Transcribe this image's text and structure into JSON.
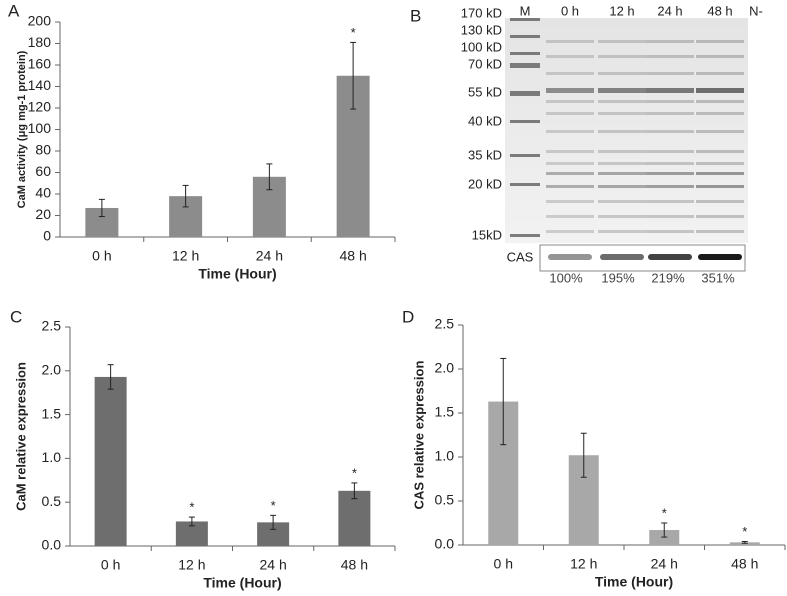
{
  "chart_data": [
    {
      "type": "bar",
      "panel_label": "A",
      "x_label": "Time (Hour)",
      "y_label": "CaM activity (μg mg-1 protein)",
      "categories": [
        "0 h",
        "12 h",
        "24 h",
        "48 h"
      ],
      "values": [
        27,
        38,
        56,
        150
      ],
      "errors": [
        8,
        10,
        12,
        31
      ],
      "color": "#8c8c8c",
      "ylim": [
        0,
        200
      ],
      "yticks": [
        0,
        20,
        40,
        60,
        80,
        100,
        120,
        140,
        160,
        180,
        200
      ],
      "annotations": [
        {
          "text": "*",
          "category": "48 h"
        }
      ]
    },
    {
      "type": "bar",
      "panel_label": "C",
      "x_label": "Time (Hour)",
      "y_label": "CaM relative expression",
      "categories": [
        "0 h",
        "12 h",
        "24 h",
        "48 h"
      ],
      "values": [
        1.93,
        0.28,
        0.27,
        0.63
      ],
      "errors": [
        0.14,
        0.05,
        0.08,
        0.09
      ],
      "color": "#6e6e6e",
      "ylim": [
        0,
        2.5
      ],
      "yticks": [
        {
          "value": 0,
          "label": "0.0"
        },
        0.5,
        {
          "value": 1,
          "label": "1.0"
        },
        1.5,
        {
          "value": 2,
          "label": "2.0"
        },
        2.5
      ],
      "annotations": [
        {
          "text": "*",
          "category": "12 h"
        },
        {
          "text": "*",
          "category": "24 h"
        },
        {
          "text": "*",
          "category": "48 h"
        }
      ]
    },
    {
      "type": "bar",
      "panel_label": "D",
      "x_label": "Time (Hour)",
      "y_label": "CAS relative expression",
      "categories": [
        "0 h",
        "12 h",
        "24 h",
        "48 h"
      ],
      "values": [
        1.63,
        1.02,
        0.17,
        0.03
      ],
      "errors": [
        0.49,
        0.25,
        0.08,
        0.01
      ],
      "color": "#a8a8a8",
      "ylim": [
        0,
        2.5
      ],
      "yticks": [
        {
          "value": 0,
          "label": "0.0"
        },
        0.5,
        {
          "value": 1,
          "label": "1.0"
        },
        1.5,
        {
          "value": 2,
          "label": "2.0"
        },
        2.5
      ],
      "annotations": [
        {
          "text": "*",
          "category": "24 h"
        },
        {
          "text": "*",
          "category": "48 h"
        }
      ]
    }
  ],
  "gel": {
    "panel_label": "B",
    "lanes": [
      "M",
      "0 h",
      "12 h",
      "24 h",
      "48 h",
      "N-"
    ],
    "markers": [
      "170 kD",
      "130 kD",
      "100 kD",
      "70 kD",
      "55 kD",
      "40 kD",
      "35 kD",
      "20 kD",
      "15kD"
    ],
    "band_label": "CAS",
    "quantities": [
      "100%",
      "195%",
      "219%",
      "351%"
    ]
  }
}
